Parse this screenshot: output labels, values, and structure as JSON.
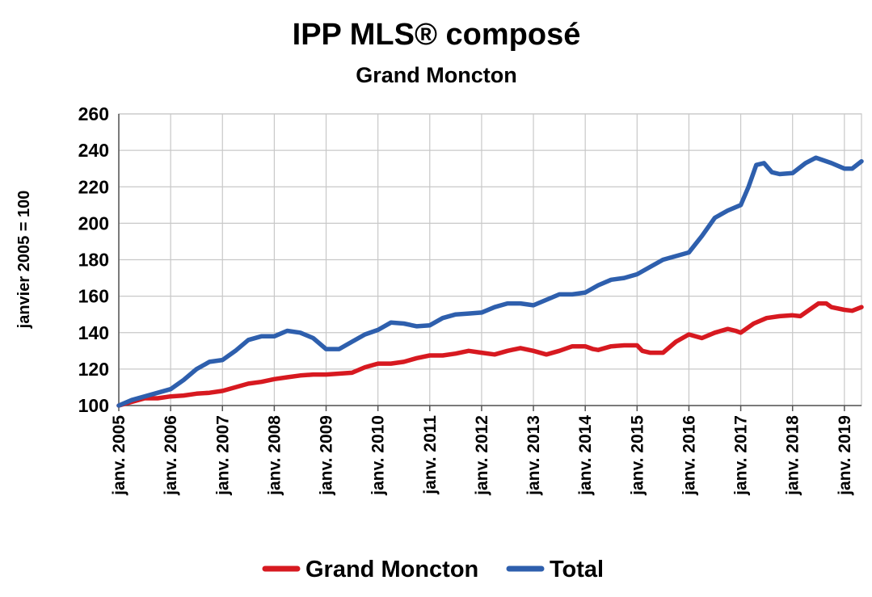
{
  "chart_data": {
    "type": "line",
    "title": "IPP MLS® composé",
    "subtitle": "Grand Moncton",
    "ylabel": "janvier 2005 = 100",
    "ylim": [
      100,
      260
    ],
    "yticks": [
      100,
      120,
      140,
      160,
      180,
      200,
      220,
      240,
      260
    ],
    "x_unit": "year",
    "xlim": [
      2005.0,
      2019.33
    ],
    "xtick_labels": [
      "janv. 2005",
      "janv. 2006",
      "janv. 2007",
      "janv. 2008",
      "janv. 2009",
      "janv. 2010",
      "janv. 2011",
      "janv. 2012",
      "janv. 2013",
      "janv. 2014",
      "janv. 2015",
      "janv. 2016",
      "janv. 2017",
      "janv. 2018",
      "janv. 2019"
    ],
    "xtick_years": [
      2005,
      2006,
      2007,
      2008,
      2009,
      2010,
      2011,
      2012,
      2013,
      2014,
      2015,
      2016,
      2017,
      2018,
      2019
    ],
    "grid": true,
    "legend_position": "bottom",
    "series": [
      {
        "name": "Grand Moncton",
        "color": "#d71920",
        "points": [
          [
            2005.0,
            100
          ],
          [
            2005.25,
            102
          ],
          [
            2005.5,
            104
          ],
          [
            2005.75,
            104
          ],
          [
            2006.0,
            105
          ],
          [
            2006.25,
            105.5
          ],
          [
            2006.5,
            106.5
          ],
          [
            2006.75,
            107
          ],
          [
            2007.0,
            108
          ],
          [
            2007.25,
            110
          ],
          [
            2007.5,
            112
          ],
          [
            2007.75,
            113
          ],
          [
            2008.0,
            114.5
          ],
          [
            2008.25,
            115.5
          ],
          [
            2008.5,
            116.5
          ],
          [
            2008.75,
            117
          ],
          [
            2009.0,
            117
          ],
          [
            2009.25,
            117.5
          ],
          [
            2009.5,
            118
          ],
          [
            2009.75,
            121
          ],
          [
            2010.0,
            123
          ],
          [
            2010.25,
            123
          ],
          [
            2010.5,
            124
          ],
          [
            2010.75,
            126
          ],
          [
            2011.0,
            127.5
          ],
          [
            2011.25,
            127.5
          ],
          [
            2011.5,
            128.5
          ],
          [
            2011.75,
            130
          ],
          [
            2012.0,
            129
          ],
          [
            2012.25,
            128
          ],
          [
            2012.5,
            130
          ],
          [
            2012.75,
            131.5
          ],
          [
            2013.0,
            130
          ],
          [
            2013.25,
            128
          ],
          [
            2013.5,
            130
          ],
          [
            2013.75,
            132.5
          ],
          [
            2014.0,
            132.5
          ],
          [
            2014.15,
            131
          ],
          [
            2014.25,
            130.5
          ],
          [
            2014.5,
            132.5
          ],
          [
            2014.75,
            133
          ],
          [
            2014.9,
            133
          ],
          [
            2015.0,
            133
          ],
          [
            2015.1,
            130
          ],
          [
            2015.25,
            129
          ],
          [
            2015.5,
            129
          ],
          [
            2015.75,
            135
          ],
          [
            2016.0,
            139
          ],
          [
            2016.25,
            137
          ],
          [
            2016.5,
            140
          ],
          [
            2016.75,
            142
          ],
          [
            2016.9,
            141
          ],
          [
            2017.0,
            140
          ],
          [
            2017.25,
            145
          ],
          [
            2017.5,
            148
          ],
          [
            2017.75,
            149
          ],
          [
            2018.0,
            149.5
          ],
          [
            2018.15,
            149
          ],
          [
            2018.25,
            151
          ],
          [
            2018.5,
            156
          ],
          [
            2018.65,
            156
          ],
          [
            2018.75,
            154
          ],
          [
            2019.0,
            152.5
          ],
          [
            2019.15,
            152
          ],
          [
            2019.33,
            154
          ]
        ]
      },
      {
        "name": "Total",
        "color": "#2e5fad",
        "points": [
          [
            2005.0,
            100
          ],
          [
            2005.25,
            103
          ],
          [
            2005.5,
            105
          ],
          [
            2005.75,
            107
          ],
          [
            2006.0,
            109
          ],
          [
            2006.25,
            114
          ],
          [
            2006.5,
            120
          ],
          [
            2006.75,
            124
          ],
          [
            2007.0,
            125
          ],
          [
            2007.25,
            130
          ],
          [
            2007.5,
            136
          ],
          [
            2007.75,
            138
          ],
          [
            2008.0,
            138
          ],
          [
            2008.25,
            141
          ],
          [
            2008.5,
            140
          ],
          [
            2008.75,
            137
          ],
          [
            2009.0,
            131
          ],
          [
            2009.25,
            131
          ],
          [
            2009.5,
            135
          ],
          [
            2009.75,
            139
          ],
          [
            2010.0,
            141.5
          ],
          [
            2010.25,
            145.5
          ],
          [
            2010.5,
            145
          ],
          [
            2010.75,
            143.5
          ],
          [
            2011.0,
            144
          ],
          [
            2011.25,
            148
          ],
          [
            2011.5,
            150
          ],
          [
            2011.75,
            150.5
          ],
          [
            2012.0,
            151
          ],
          [
            2012.25,
            154
          ],
          [
            2012.5,
            156
          ],
          [
            2012.75,
            156
          ],
          [
            2013.0,
            155
          ],
          [
            2013.25,
            158
          ],
          [
            2013.5,
            161
          ],
          [
            2013.75,
            161
          ],
          [
            2014.0,
            162
          ],
          [
            2014.25,
            166
          ],
          [
            2014.5,
            169
          ],
          [
            2014.75,
            170
          ],
          [
            2015.0,
            172
          ],
          [
            2015.25,
            176
          ],
          [
            2015.5,
            180
          ],
          [
            2015.75,
            182
          ],
          [
            2016.0,
            184
          ],
          [
            2016.25,
            193
          ],
          [
            2016.5,
            203
          ],
          [
            2016.75,
            207
          ],
          [
            2017.0,
            210
          ],
          [
            2017.15,
            220
          ],
          [
            2017.3,
            232
          ],
          [
            2017.45,
            233
          ],
          [
            2017.6,
            228
          ],
          [
            2017.75,
            227
          ],
          [
            2018.0,
            227.5
          ],
          [
            2018.25,
            233
          ],
          [
            2018.45,
            236
          ],
          [
            2018.75,
            233
          ],
          [
            2019.0,
            230
          ],
          [
            2019.15,
            230
          ],
          [
            2019.33,
            234
          ]
        ]
      }
    ]
  }
}
